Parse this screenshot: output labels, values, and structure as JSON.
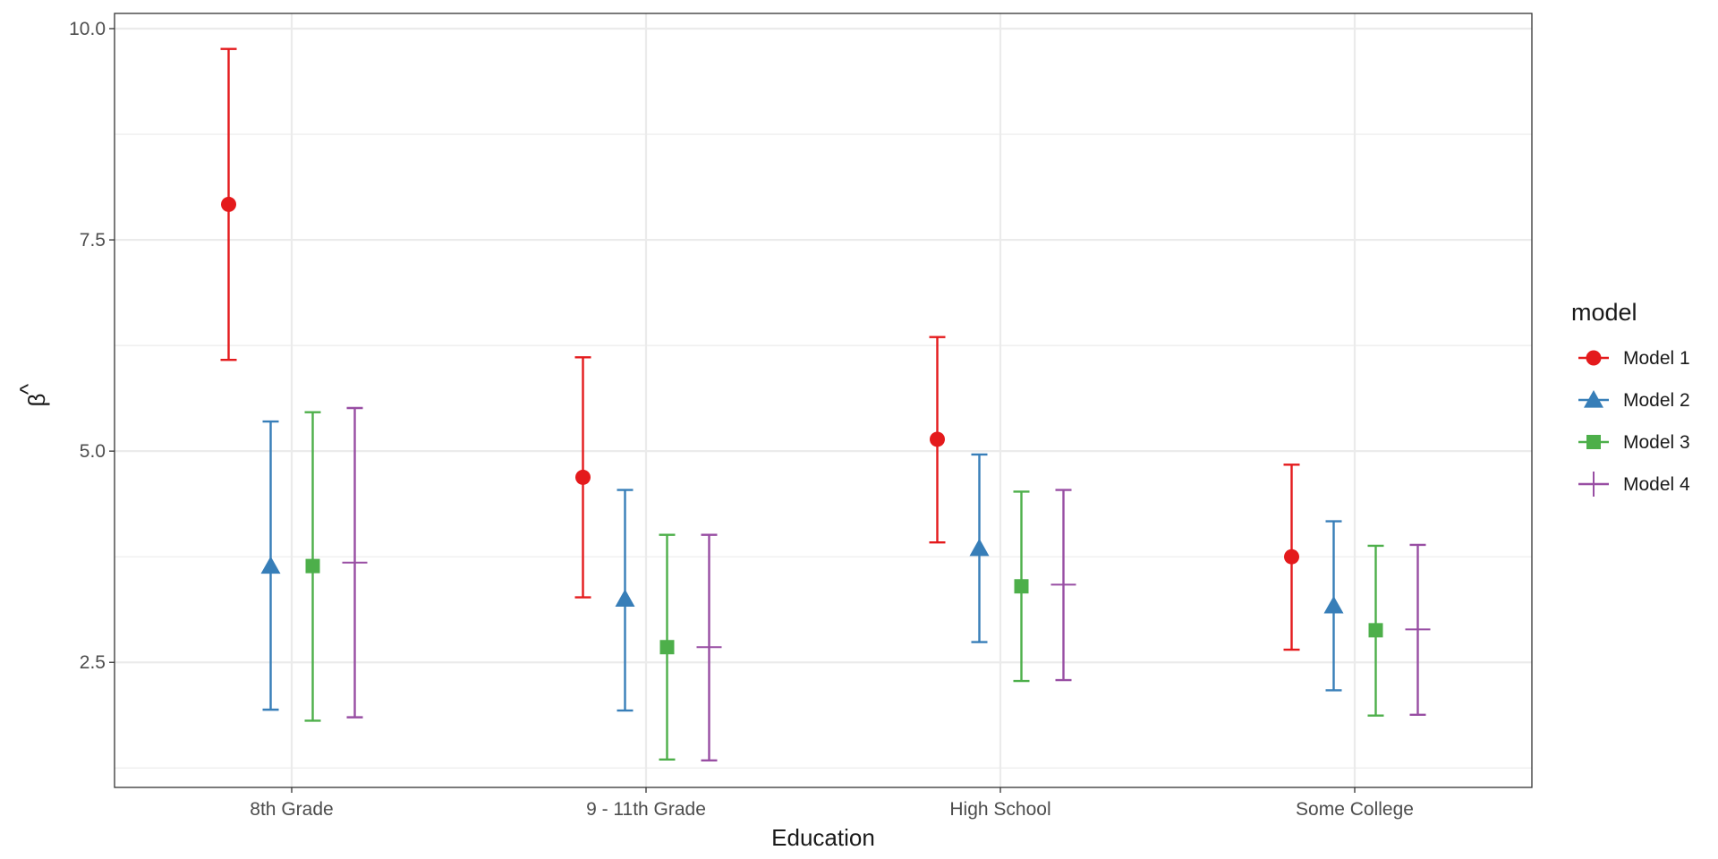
{
  "chart_data": {
    "type": "scatter",
    "subtype": "pointrange-dodged",
    "title": "",
    "xlabel": "Education",
    "ylabel": "β̂",
    "ylabel_hat": "^",
    "ylabel_main": "β",
    "categories": [
      "8th Grade",
      "9 - 11th Grade",
      "High School",
      "Some College"
    ],
    "ylim": [
      1.02,
      10.18
    ],
    "yticks": [
      2.5,
      5.0,
      7.5,
      10.0
    ],
    "ytick_labels": [
      "2.5",
      "5.0",
      "7.5",
      "10.0"
    ],
    "grid": true,
    "legend": {
      "title": "model",
      "position": "right"
    },
    "series": [
      {
        "name": "Model 1",
        "color": "#E41A1C",
        "shape": "circle",
        "values": [
          7.92,
          4.69,
          5.14,
          3.75
        ],
        "lower": [
          6.08,
          3.27,
          3.92,
          2.65
        ],
        "upper": [
          9.76,
          6.11,
          6.35,
          4.84
        ]
      },
      {
        "name": "Model 2",
        "color": "#377EB8",
        "shape": "triangle",
        "values": [
          3.64,
          3.25,
          3.85,
          3.17
        ],
        "lower": [
          1.94,
          1.93,
          2.74,
          2.17
        ],
        "upper": [
          5.35,
          4.54,
          4.96,
          4.17
        ]
      },
      {
        "name": "Model 3",
        "color": "#4DAF4A",
        "shape": "square",
        "values": [
          3.64,
          2.68,
          3.4,
          2.88
        ],
        "lower": [
          1.81,
          1.35,
          2.28,
          1.87
        ],
        "upper": [
          5.46,
          4.01,
          4.52,
          3.88
        ]
      },
      {
        "name": "Model 4",
        "color": "#984EA3",
        "shape": "plus",
        "values": [
          3.68,
          2.68,
          3.42,
          2.89
        ],
        "lower": [
          1.85,
          1.34,
          2.29,
          1.88
        ],
        "upper": [
          5.51,
          4.01,
          4.54,
          3.89
        ]
      }
    ]
  }
}
